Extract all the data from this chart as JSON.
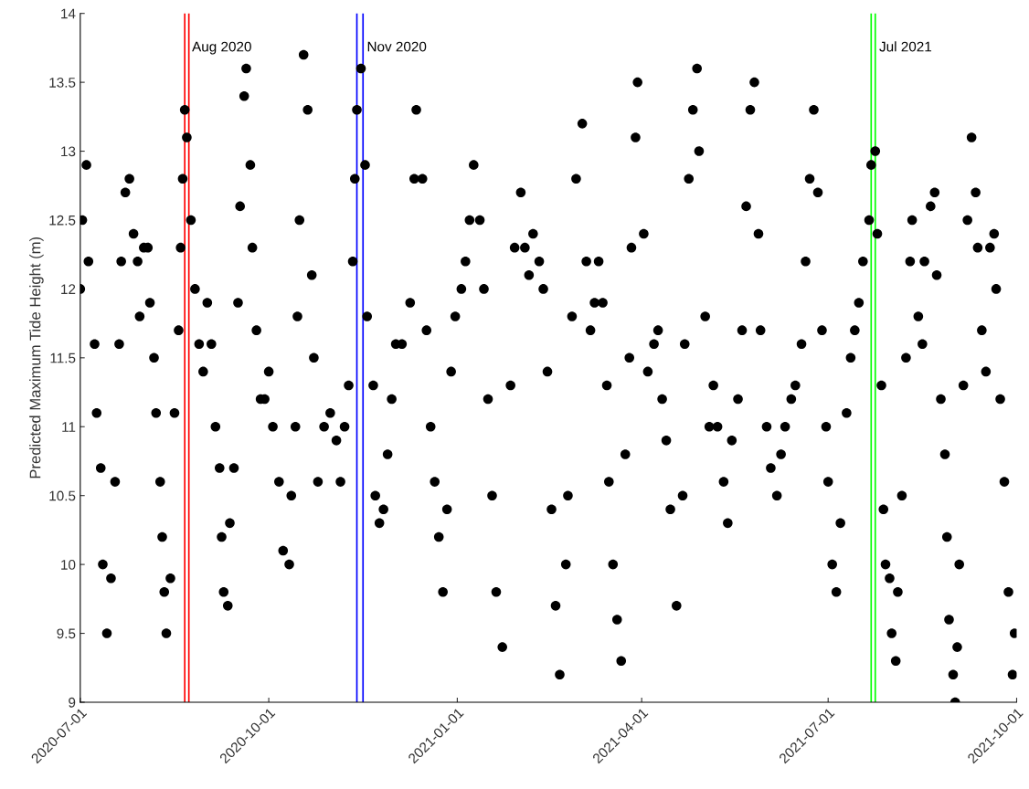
{
  "chart_data": {
    "type": "scatter",
    "ylabel": "Predicted Maximum Tide Height (m)",
    "xlim": [
      "2020-07-01",
      "2021-10-01"
    ],
    "xticks": [
      "2020-07-01",
      "2020-10-01",
      "2021-01-01",
      "2021-04-01",
      "2021-07-01",
      "2021-10-01"
    ],
    "ylim": [
      9,
      14
    ],
    "yticks": [
      9,
      9.5,
      10,
      10.5,
      11,
      11.5,
      12,
      12.5,
      13,
      13.5,
      14
    ],
    "grid": false,
    "marker": "circle",
    "legend": false,
    "ref_lines": [
      {
        "axis": "x",
        "value": "2020-08-21",
        "label": null,
        "color": "#ff0000"
      },
      {
        "axis": "x",
        "value": "2020-08-23",
        "label": "Aug 2020",
        "color": "#ff0000"
      },
      {
        "axis": "x",
        "value": "2020-11-13",
        "label": null,
        "color": "#0000ff"
      },
      {
        "axis": "x",
        "value": "2020-11-16",
        "label": "Nov 2020",
        "color": "#0000ff"
      },
      {
        "axis": "x",
        "value": "2021-07-22",
        "label": null,
        "color": "#00ff00"
      },
      {
        "axis": "x",
        "value": "2021-07-24",
        "label": "Jul 2021",
        "color": "#00ff00"
      }
    ],
    "series": [
      {
        "color": "#000000",
        "x": [
          "2020-07-01",
          "2020-07-02",
          "2020-07-04",
          "2020-07-05",
          "2020-07-08",
          "2020-07-09",
          "2020-07-11",
          "2020-07-12",
          "2020-07-14",
          "2020-07-16",
          "2020-07-18",
          "2020-07-20",
          "2020-07-21",
          "2020-07-23",
          "2020-07-25",
          "2020-07-27",
          "2020-07-29",
          "2020-07-30",
          "2020-08-01",
          "2020-08-03",
          "2020-08-04",
          "2020-08-06",
          "2020-08-07",
          "2020-08-09",
          "2020-08-10",
          "2020-08-11",
          "2020-08-12",
          "2020-08-14",
          "2020-08-16",
          "2020-08-18",
          "2020-08-19",
          "2020-08-20",
          "2020-08-21",
          "2020-08-22",
          "2020-08-24",
          "2020-08-26",
          "2020-08-28",
          "2020-08-30",
          "2020-09-01",
          "2020-09-03",
          "2020-09-05",
          "2020-09-07",
          "2020-09-08",
          "2020-09-09",
          "2020-09-11",
          "2020-09-12",
          "2020-09-14",
          "2020-09-16",
          "2020-09-17",
          "2020-09-19",
          "2020-09-20",
          "2020-09-22",
          "2020-09-23",
          "2020-09-25",
          "2020-09-27",
          "2020-09-29",
          "2020-10-01",
          "2020-10-03",
          "2020-10-06",
          "2020-10-08",
          "2020-10-11",
          "2020-10-12",
          "2020-10-14",
          "2020-10-15",
          "2020-10-16",
          "2020-10-18",
          "2020-10-20",
          "2020-10-22",
          "2020-10-23",
          "2020-10-25",
          "2020-10-28",
          "2020-10-31",
          "2020-11-03",
          "2020-11-05",
          "2020-11-07",
          "2020-11-09",
          "2020-11-11",
          "2020-11-12",
          "2020-11-13",
          "2020-11-15",
          "2020-11-17",
          "2020-11-18",
          "2020-11-21",
          "2020-11-22",
          "2020-11-24",
          "2020-11-26",
          "2020-11-28",
          "2020-11-30",
          "2020-12-02",
          "2020-12-05",
          "2020-12-09",
          "2020-12-11",
          "2020-12-12",
          "2020-12-15",
          "2020-12-17",
          "2020-12-19",
          "2020-12-21",
          "2020-12-23",
          "2020-12-25",
          "2020-12-27",
          "2020-12-29",
          "2020-12-31",
          "2021-01-03",
          "2021-01-05",
          "2021-01-07",
          "2021-01-09",
          "2021-01-12",
          "2021-01-14",
          "2021-01-16",
          "2021-01-18",
          "2021-01-20",
          "2021-01-23",
          "2021-01-27",
          "2021-01-29",
          "2021-02-01",
          "2021-02-03",
          "2021-02-05",
          "2021-02-07",
          "2021-02-10",
          "2021-02-12",
          "2021-02-14",
          "2021-02-16",
          "2021-02-18",
          "2021-02-20",
          "2021-02-23",
          "2021-02-24",
          "2021-02-26",
          "2021-02-28",
          "2021-03-03",
          "2021-03-05",
          "2021-03-07",
          "2021-03-09",
          "2021-03-11",
          "2021-03-13",
          "2021-03-15",
          "2021-03-16",
          "2021-03-18",
          "2021-03-20",
          "2021-03-22",
          "2021-03-24",
          "2021-03-26",
          "2021-03-27",
          "2021-03-29",
          "2021-03-30",
          "2021-04-02",
          "2021-04-04",
          "2021-04-07",
          "2021-04-09",
          "2021-04-11",
          "2021-04-13",
          "2021-04-15",
          "2021-04-18",
          "2021-04-21",
          "2021-04-22",
          "2021-04-24",
          "2021-04-26",
          "2021-04-28",
          "2021-04-29",
          "2021-05-02",
          "2021-05-04",
          "2021-05-06",
          "2021-05-08",
          "2021-05-11",
          "2021-05-13",
          "2021-05-15",
          "2021-05-18",
          "2021-05-20",
          "2021-05-22",
          "2021-05-24",
          "2021-05-26",
          "2021-05-28",
          "2021-05-29",
          "2021-06-01",
          "2021-06-03",
          "2021-06-06",
          "2021-06-08",
          "2021-06-10",
          "2021-06-13",
          "2021-06-15",
          "2021-06-18",
          "2021-06-20",
          "2021-06-22",
          "2021-06-24",
          "2021-06-26",
          "2021-06-28",
          "2021-06-30",
          "2021-07-01",
          "2021-07-03",
          "2021-07-05",
          "2021-07-07",
          "2021-07-10",
          "2021-07-12",
          "2021-07-14",
          "2021-07-16",
          "2021-07-18",
          "2021-07-21",
          "2021-07-22",
          "2021-07-24",
          "2021-07-25",
          "2021-07-27",
          "2021-07-28",
          "2021-07-29",
          "2021-07-31",
          "2021-08-01",
          "2021-08-03",
          "2021-08-04",
          "2021-08-06",
          "2021-08-08",
          "2021-08-10",
          "2021-08-11",
          "2021-08-14",
          "2021-08-16",
          "2021-08-17",
          "2021-08-20",
          "2021-08-22",
          "2021-08-23",
          "2021-08-25",
          "2021-08-27",
          "2021-08-28",
          "2021-08-29",
          "2021-08-31",
          "2021-09-01",
          "2021-09-02",
          "2021-09-03",
          "2021-09-05",
          "2021-09-07",
          "2021-09-09",
          "2021-09-11",
          "2021-09-12",
          "2021-09-14",
          "2021-09-16",
          "2021-09-18",
          "2021-09-20",
          "2021-09-21",
          "2021-09-23",
          "2021-09-25",
          "2021-09-27",
          "2021-09-29",
          "2021-09-30"
        ],
        "values": [
          12.0,
          12.5,
          12.9,
          12.2,
          11.6,
          11.1,
          10.7,
          10.0,
          9.5,
          9.9,
          10.6,
          11.6,
          12.2,
          12.7,
          12.8,
          12.4,
          12.2,
          11.8,
          12.3,
          12.3,
          11.9,
          11.5,
          11.1,
          10.6,
          10.2,
          9.8,
          9.5,
          9.9,
          11.1,
          11.7,
          12.3,
          12.8,
          13.3,
          13.1,
          12.5,
          12.0,
          11.6,
          11.4,
          11.9,
          11.6,
          11.0,
          10.7,
          10.2,
          9.8,
          9.7,
          10.3,
          10.7,
          11.9,
          12.6,
          13.4,
          13.6,
          12.9,
          12.3,
          11.7,
          11.2,
          11.2,
          11.4,
          11.0,
          10.6,
          10.1,
          10.0,
          10.5,
          11.0,
          11.8,
          12.5,
          13.7,
          13.3,
          12.1,
          11.5,
          10.6,
          11.0,
          11.1,
          10.9,
          10.6,
          11.0,
          11.3,
          12.2,
          12.8,
          13.3,
          13.6,
          12.9,
          11.8,
          11.3,
          10.5,
          10.3,
          10.4,
          10.8,
          11.2,
          11.6,
          11.6,
          11.9,
          12.8,
          13.3,
          12.8,
          11.7,
          11.0,
          10.6,
          10.2,
          9.8,
          10.4,
          11.4,
          11.8,
          12.0,
          12.2,
          12.5,
          12.9,
          12.5,
          12.0,
          11.2,
          10.5,
          9.8,
          9.4,
          11.3,
          12.3,
          12.7,
          12.3,
          12.1,
          12.4,
          12.2,
          12.0,
          11.4,
          10.4,
          9.7,
          9.2,
          10.0,
          10.5,
          11.8,
          12.8,
          13.2,
          12.2,
          11.7,
          11.9,
          12.2,
          11.9,
          11.3,
          10.6,
          10.0,
          9.6,
          9.3,
          10.8,
          11.5,
          12.3,
          13.1,
          13.5,
          12.4,
          11.4,
          11.6,
          11.7,
          11.2,
          10.9,
          10.4,
          9.7,
          10.5,
          11.6,
          12.8,
          13.3,
          13.6,
          13.0,
          11.8,
          11.0,
          11.3,
          11.0,
          10.6,
          10.3,
          10.9,
          11.2,
          11.7,
          12.6,
          13.3,
          13.5,
          12.4,
          11.7,
          11.0,
          10.7,
          10.5,
          10.8,
          11.0,
          11.2,
          11.3,
          11.6,
          12.2,
          12.8,
          13.3,
          12.7,
          11.7,
          11.0,
          10.6,
          10.0,
          9.8,
          10.3,
          11.1,
          11.5,
          11.7,
          11.9,
          12.2,
          12.5,
          12.9,
          13.0,
          12.4,
          11.3,
          10.4,
          10.0,
          9.9,
          9.5,
          9.3,
          9.8,
          10.5,
          11.5,
          12.2,
          12.5,
          11.8,
          11.6,
          12.2,
          12.6,
          12.7,
          12.1,
          11.2,
          10.8,
          10.2,
          9.6,
          9.2,
          9.0,
          9.4,
          10.0,
          11.3,
          12.5,
          13.1,
          12.7,
          12.3,
          11.7,
          11.4,
          12.3,
          12.4,
          12.0,
          11.2,
          10.6,
          9.8,
          9.2,
          9.5
        ]
      }
    ]
  }
}
